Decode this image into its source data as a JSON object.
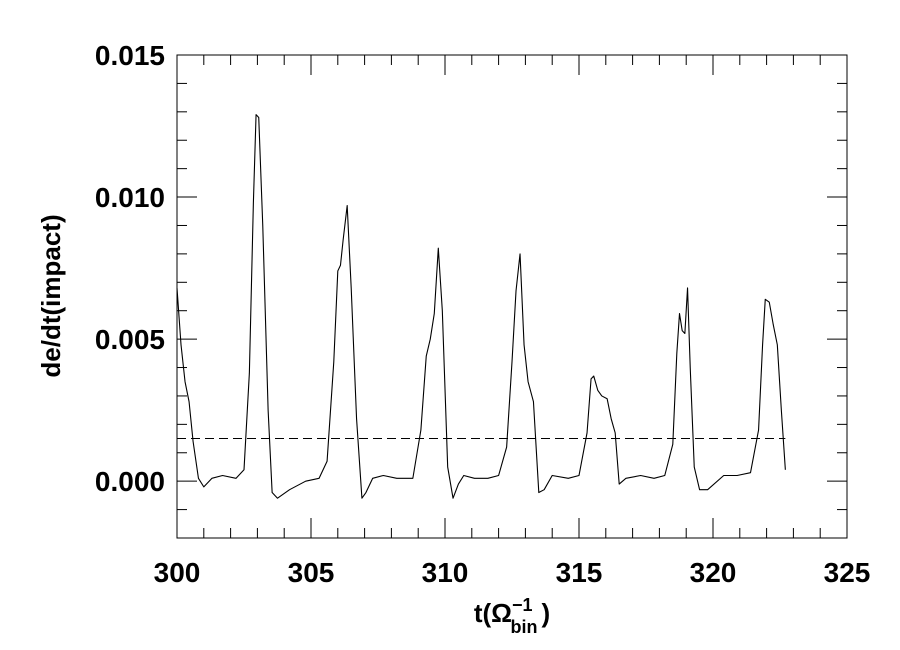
{
  "chart_data": {
    "type": "line",
    "title": "",
    "xlabel": "t(Ω",
    "xlabel_superscript": "−1",
    "xlabel_subscript": "bin",
    "xlabel_close": ")",
    "ylabel": "de/dt(impact)",
    "xlim": [
      300,
      325
    ],
    "ylim": [
      -0.002,
      0.015
    ],
    "xticks": [
      300,
      305,
      310,
      315,
      320,
      325
    ],
    "xtick_labels": [
      "300",
      "305",
      "310",
      "315",
      "320",
      "325"
    ],
    "yticks": [
      0.0,
      0.005,
      0.01,
      0.015
    ],
    "ytick_labels": [
      "0.000",
      "0.005",
      "0.010",
      "0.015"
    ],
    "grid": false,
    "line_color": "#000000",
    "reference_line": {
      "y": 0.0015,
      "style": "dashed",
      "x_range": [
        300,
        322.7
      ]
    },
    "series": [
      {
        "x": [
          300.0,
          300.15,
          300.3,
          300.45,
          300.6,
          300.8,
          301.0,
          301.3,
          301.7,
          302.2,
          302.5,
          302.7,
          302.85,
          302.95,
          303.05,
          303.2,
          303.4,
          303.55,
          303.75,
          304.2,
          304.8,
          305.3,
          305.6,
          305.85,
          306.0,
          306.1,
          306.2,
          306.35,
          306.5,
          306.7,
          306.9,
          307.05,
          307.3,
          307.7,
          308.2,
          308.8,
          309.1,
          309.3,
          309.45,
          309.6,
          309.75,
          309.9,
          310.1,
          310.3,
          310.5,
          310.7,
          311.1,
          311.6,
          312.0,
          312.3,
          312.5,
          312.65,
          312.8,
          312.95,
          313.1,
          313.3,
          313.5,
          313.7,
          314.0,
          314.6,
          315.0,
          315.3,
          315.45,
          315.55,
          315.7,
          315.85,
          316.05,
          316.2,
          316.35,
          316.5,
          316.75,
          317.3,
          317.8,
          318.2,
          318.5,
          318.65,
          318.75,
          318.85,
          318.95,
          319.05,
          319.15,
          319.3,
          319.5,
          319.8,
          320.4,
          320.9,
          321.4,
          321.7,
          321.85,
          321.95,
          322.1,
          322.25,
          322.4,
          322.55,
          322.7
        ],
        "y": [
          0.0068,
          0.0048,
          0.0035,
          0.0028,
          0.0014,
          0.0001,
          -0.0002,
          0.0001,
          0.0002,
          0.0001,
          0.0004,
          0.0038,
          0.0098,
          0.0129,
          0.0128,
          0.009,
          0.0025,
          -0.0004,
          -0.0006,
          -0.0003,
          0.0,
          0.0001,
          0.0007,
          0.0042,
          0.0074,
          0.0076,
          0.0085,
          0.0097,
          0.0068,
          0.0022,
          -0.0006,
          -0.0004,
          0.0001,
          0.0002,
          0.0001,
          0.0001,
          0.0018,
          0.0044,
          0.005,
          0.0059,
          0.0082,
          0.006,
          0.0005,
          -0.0006,
          -0.0001,
          0.0002,
          0.0001,
          0.0001,
          0.0002,
          0.0012,
          0.0042,
          0.0067,
          0.008,
          0.0048,
          0.0035,
          0.0028,
          -0.0004,
          -0.0003,
          0.0002,
          0.0001,
          0.0002,
          0.0017,
          0.0036,
          0.0037,
          0.0032,
          0.003,
          0.0029,
          0.0022,
          0.0017,
          -0.0001,
          0.0001,
          0.0002,
          0.0001,
          0.0002,
          0.0013,
          0.0045,
          0.0059,
          0.0053,
          0.0052,
          0.0068,
          0.004,
          0.0005,
          -0.0003,
          -0.0003,
          0.0002,
          0.0002,
          0.0003,
          0.0018,
          0.0048,
          0.0064,
          0.0063,
          0.0055,
          0.0048,
          0.0025,
          0.0004
        ]
      }
    ]
  }
}
